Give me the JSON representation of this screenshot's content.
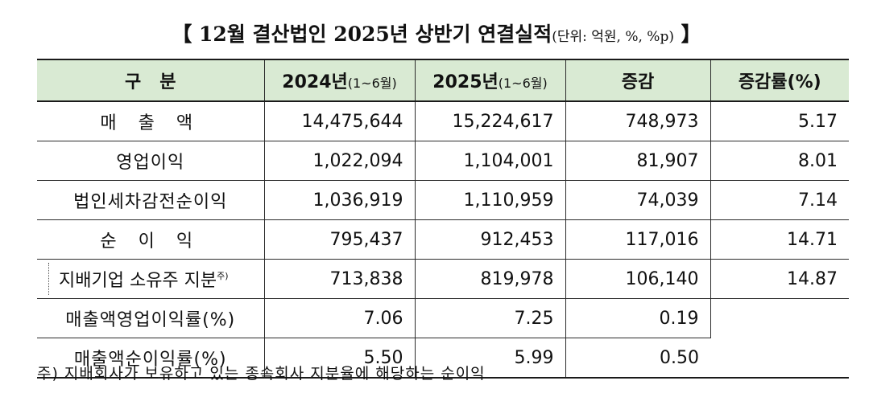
{
  "title": {
    "main": "【 12월 결산법인 2025년 상반기 연결실적",
    "unit": "(단위: 억원, %, %p)",
    "close": " 】"
  },
  "table": {
    "headers": [
      {
        "main": "구   분",
        "period": ""
      },
      {
        "main": "2024년",
        "period": "(1~6월)"
      },
      {
        "main": "2025년",
        "period": "(1~6월)"
      },
      {
        "main": "증감",
        "period": ""
      },
      {
        "main": "증감률(%)",
        "period": ""
      }
    ],
    "rows": [
      {
        "label": "매 출 액",
        "v2024": "14,475,644",
        "v2025": "15,224,617",
        "change": "748,973",
        "rate": "5.17"
      },
      {
        "label": "영업이익",
        "v2024": "1,022,094",
        "v2025": "1,104,001",
        "change": "81,907",
        "rate": "8.01"
      },
      {
        "label": "법인세차감전순이익",
        "v2024": "1,036,919",
        "v2025": "1,110,959",
        "change": "74,039",
        "rate": "7.14"
      },
      {
        "label": "순 이 익",
        "v2024": "795,437",
        "v2025": "912,453",
        "change": "117,016",
        "rate": "14.71"
      },
      {
        "label": "지배기업 소유주 지분",
        "mark": "주)",
        "v2024": "713,838",
        "v2025": "819,978",
        "change": "106,140",
        "rate": "14.87"
      },
      {
        "label": "매출액영업이익률(%)",
        "v2024": "7.06",
        "v2025": "7.25",
        "change": "0.19",
        "rate": ""
      },
      {
        "label": "매출액순이익률(%)",
        "v2024": "5.50",
        "v2025": "5.99",
        "change": "0.50",
        "rate": ""
      }
    ]
  },
  "footnote": "주) 지배회사가 보유하고 있는 종속회사 지분율에 해당하는 순이익"
}
